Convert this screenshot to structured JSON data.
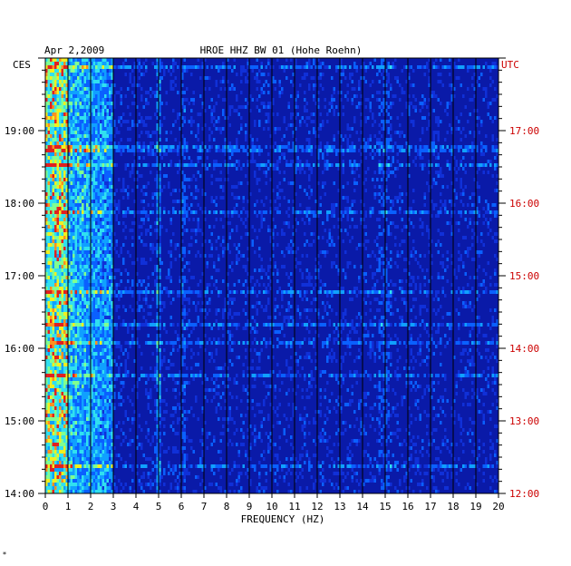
{
  "chart_data": {
    "type": "heatmap",
    "date": "Apr 2,2009",
    "title": "HROE HHZ BW 01 (Hohe Roehn)",
    "left_timezone": "CES",
    "right_timezone": "UTC",
    "xlabel": "FREQUENCY (HZ)",
    "xlim": [
      0,
      20
    ],
    "x_ticks": [
      "0",
      "1",
      "2",
      "3",
      "4",
      "5",
      "6",
      "7",
      "8",
      "9",
      "10",
      "11",
      "12",
      "13",
      "14",
      "15",
      "16",
      "17",
      "18",
      "19",
      "20"
    ],
    "left_time_ticks": [
      "14:00",
      "15:00",
      "16:00",
      "17:00",
      "18:00",
      "19:00"
    ],
    "right_time_ticks": [
      "12:00",
      "13:00",
      "14:00",
      "15:00",
      "16:00",
      "17:00"
    ],
    "time_range_ces": [
      "14:00",
      "20:00"
    ],
    "colors": {
      "background": "#0a1aa8",
      "low": "#0000cc",
      "mid": "#00ffff",
      "high": "#ffff00",
      "peak": "#ff0000",
      "right_axis": "#cc0000"
    },
    "features": [
      {
        "name": "broadband microseism",
        "freq_range": [
          0.2,
          3.0
        ],
        "intensity": "high"
      },
      {
        "name": "line",
        "freq": 5.0,
        "intensity": "medium"
      },
      {
        "name": "line",
        "freq": 6.1,
        "intensity": "low"
      },
      {
        "name": "line",
        "freq": 15.0,
        "intensity": "low"
      }
    ]
  }
}
